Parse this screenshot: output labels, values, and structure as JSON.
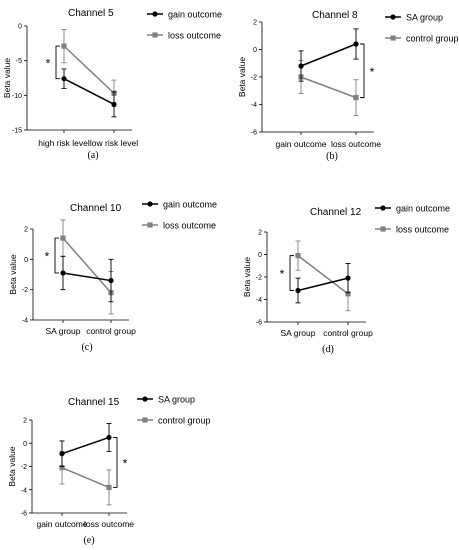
{
  "chart_data": [
    {
      "panel": "(a)",
      "type": "line",
      "title": "Channel 5",
      "xlabel": "",
      "ylabel": "Beta value",
      "categories": [
        "high risk level",
        "low risk  level"
      ],
      "ylim": [
        -15,
        0
      ],
      "yticks": [
        -15,
        -10,
        -5,
        0
      ],
      "series": [
        {
          "name": "gain outcome",
          "color": "#000000",
          "marker": "circle",
          "values": [
            -7.6,
            -11.3
          ],
          "err": [
            1.4,
            1.8
          ]
        },
        {
          "name": "loss outcome",
          "color": "#808080",
          "marker": "square",
          "values": [
            -2.9,
            -9.7
          ],
          "err": [
            2.4,
            1.9
          ]
        }
      ],
      "significance": [
        {
          "category": 0,
          "label": "*",
          "side": "left"
        }
      ],
      "legend": "top-right",
      "grid": false
    },
    {
      "panel": "(b)",
      "type": "line",
      "title": "Channel 8",
      "xlabel": "",
      "ylabel": "Beta value",
      "categories": [
        "gain outcome",
        "loss outcome"
      ],
      "ylim": [
        -6,
        2
      ],
      "yticks": [
        -6,
        -4,
        -2,
        0,
        2
      ],
      "series": [
        {
          "name": "SA group",
          "color": "#000000",
          "marker": "circle",
          "values": [
            -1.2,
            0.4
          ],
          "err": [
            1.1,
            1.1
          ]
        },
        {
          "name": "control group",
          "color": "#808080",
          "marker": "square",
          "values": [
            -2.0,
            -3.5
          ],
          "err": [
            1.2,
            1.3
          ]
        }
      ],
      "significance": [
        {
          "category": 1,
          "label": "*",
          "side": "right"
        }
      ],
      "legend": "top-right",
      "grid": false
    },
    {
      "panel": "(c)",
      "type": "line",
      "title": "Channel 10",
      "xlabel": "",
      "ylabel": "Beta value",
      "categories": [
        "SA group",
        "control group"
      ],
      "ylim": [
        -4,
        2
      ],
      "yticks": [
        -4,
        -2,
        0,
        2
      ],
      "series": [
        {
          "name": "gain outcome",
          "color": "#000000",
          "marker": "circle",
          "values": [
            -0.9,
            -1.4
          ],
          "err": [
            1.1,
            1.4
          ]
        },
        {
          "name": "loss outcome",
          "color": "#808080",
          "marker": "square",
          "values": [
            1.4,
            -2.2
          ],
          "err": [
            1.2,
            1.4
          ]
        }
      ],
      "significance": [
        {
          "category": 0,
          "label": "*",
          "side": "left"
        }
      ],
      "legend": "top-right",
      "grid": false
    },
    {
      "panel": "(d)",
      "type": "line",
      "title": "Channel 12",
      "xlabel": "",
      "ylabel": "Beta value",
      "categories": [
        "SA group",
        "control group"
      ],
      "ylim": [
        -6,
        2
      ],
      "yticks": [
        -6,
        -4,
        -2,
        0,
        2
      ],
      "series": [
        {
          "name": "gain outcome",
          "color": "#000000",
          "marker": "circle",
          "values": [
            -3.2,
            -2.1
          ],
          "err": [
            1.1,
            1.3
          ]
        },
        {
          "name": "loss outcome",
          "color": "#808080",
          "marker": "square",
          "values": [
            -0.1,
            -3.5
          ],
          "err": [
            1.3,
            1.5
          ]
        }
      ],
      "significance": [
        {
          "category": 0,
          "label": "*",
          "side": "left"
        }
      ],
      "legend": "top-right",
      "grid": false
    },
    {
      "panel": "(e)",
      "type": "line",
      "title": "Channel 15",
      "xlabel": "",
      "ylabel": "Beta value",
      "categories": [
        "gain outcome",
        "loss outcome"
      ],
      "ylim": [
        -6,
        2
      ],
      "yticks": [
        -6,
        -4,
        -2,
        0,
        2
      ],
      "series": [
        {
          "name": "SA group",
          "color": "#000000",
          "marker": "circle",
          "values": [
            -0.9,
            0.5
          ],
          "err": [
            1.1,
            1.2
          ]
        },
        {
          "name": "control group",
          "color": "#808080",
          "marker": "square",
          "values": [
            -2.1,
            -3.8
          ],
          "err": [
            1.4,
            1.5
          ]
        }
      ],
      "significance": [
        {
          "category": 1,
          "label": "*",
          "side": "right"
        }
      ],
      "legend": "top-right",
      "grid": false
    }
  ]
}
